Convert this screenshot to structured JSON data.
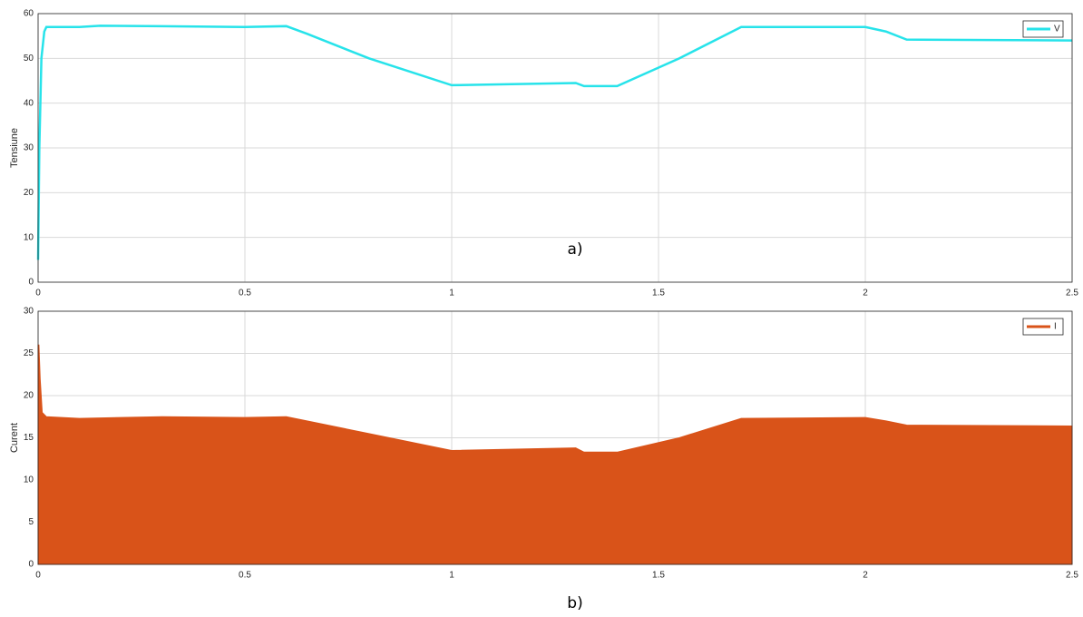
{
  "chart_data": [
    {
      "type": "line",
      "ylabel": "Tensiune",
      "annotation": "a)",
      "grid": true,
      "legend": "upper right",
      "xlim": [
        0,
        2.5
      ],
      "xticks": [
        0,
        0.5,
        1,
        1.5,
        2,
        2.5
      ],
      "ylim": [
        0,
        60
      ],
      "yticks": [
        0,
        10,
        20,
        30,
        40,
        50,
        60
      ],
      "x": [
        0,
        0.003,
        0.008,
        0.015,
        0.02,
        0.1,
        0.15,
        0.3,
        0.5,
        0.6,
        0.65,
        0.8,
        1.0,
        1.3,
        1.32,
        1.4,
        1.55,
        1.7,
        2.0,
        2.05,
        2.1,
        2.5
      ],
      "series": [
        {
          "name": "V",
          "color": "#27e3ea",
          "values": [
            5,
            30,
            50,
            56,
            57,
            57,
            57.3,
            57.2,
            57,
            57.2,
            55.5,
            50,
            44,
            44.5,
            43.8,
            43.8,
            50,
            57,
            57,
            56,
            54.2,
            54
          ]
        }
      ]
    },
    {
      "type": "area",
      "ylabel": "Curent",
      "annotation": "b)",
      "grid": true,
      "legend": "upper right",
      "xlim": [
        0,
        2.5
      ],
      "xticks": [
        0,
        0.5,
        1,
        1.5,
        2,
        2.5
      ],
      "ylim": [
        0,
        30
      ],
      "yticks": [
        0,
        5,
        10,
        15,
        20,
        25,
        30
      ],
      "x": [
        0,
        0.002,
        0.005,
        0.01,
        0.02,
        0.1,
        0.3,
        0.5,
        0.6,
        0.65,
        0.8,
        1.0,
        1.3,
        1.32,
        1.4,
        1.55,
        1.7,
        2.0,
        2.05,
        2.1,
        2.5
      ],
      "series": [
        {
          "name": "I",
          "color": "#d95319",
          "values": [
            26,
            26,
            22,
            18,
            17.5,
            17.3,
            17.5,
            17.4,
            17.5,
            17,
            15.5,
            13.5,
            13.8,
            13.3,
            13.3,
            15,
            17.3,
            17.4,
            17,
            16.5,
            16.4
          ]
        }
      ]
    }
  ]
}
